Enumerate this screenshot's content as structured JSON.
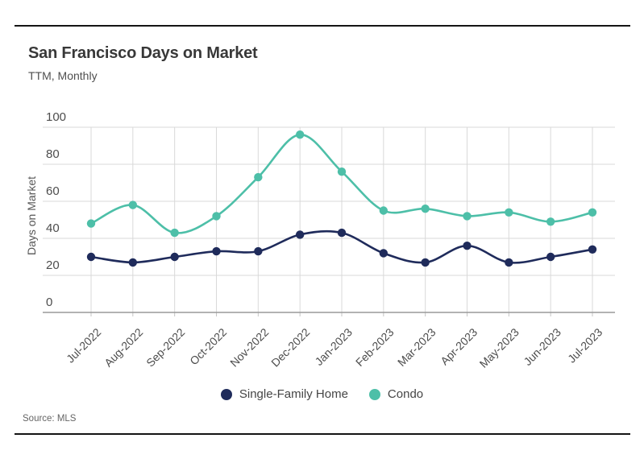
{
  "header": {
    "title": "San Francisco Days on Market",
    "subtitle": "TTM, Monthly"
  },
  "chart_data": {
    "type": "line",
    "title": "San Francisco Days on Market",
    "subtitle": "TTM, Monthly",
    "xlabel": "",
    "ylabel": "Days on Market",
    "ylim": [
      0,
      100
    ],
    "yticks": [
      0,
      20,
      40,
      60,
      80,
      100
    ],
    "grid": true,
    "line_style": "smooth",
    "markers": "dots",
    "legend_position": "bottom",
    "categories": [
      "Jul-2022",
      "Aug-2022",
      "Sep-2022",
      "Oct-2022",
      "Nov-2022",
      "Dec-2022",
      "Jan-2023",
      "Feb-2023",
      "Mar-2023",
      "Apr-2023",
      "May-2023",
      "Jun-2023",
      "Jul-2023"
    ],
    "series": [
      {
        "name": "Single-Family Home",
        "color": "#1f2b5b",
        "values": [
          30,
          27,
          30,
          33,
          33,
          42,
          43,
          32,
          27,
          36,
          27,
          30,
          34
        ]
      },
      {
        "name": "Condo",
        "color": "#4dbfa8",
        "values": [
          48,
          58,
          43,
          52,
          73,
          96,
          76,
          55,
          56,
          52,
          54,
          49,
          54
        ]
      }
    ]
  },
  "colors": {
    "gridline": "#d9d9d9",
    "axis_line": "#9a9a9a",
    "tick_mark": "#c4c4c4",
    "rule": "#141414"
  },
  "source": {
    "text": "Source: MLS"
  }
}
